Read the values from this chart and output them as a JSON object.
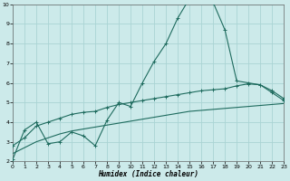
{
  "xlabel": "Humidex (Indice chaleur)",
  "bg_color": "#cceaea",
  "grid_color": "#aad4d4",
  "line_color": "#1e6b5e",
  "x_max": 23,
  "y_min": 2,
  "y_max": 10,
  "line1_x": [
    0,
    1,
    2,
    3,
    4,
    5,
    6,
    7,
    8,
    9,
    10,
    11,
    12,
    13,
    14,
    15,
    16,
    17,
    18,
    19,
    20,
    21,
    22,
    23
  ],
  "line1_y": [
    2.1,
    3.6,
    4.0,
    2.9,
    3.0,
    3.5,
    3.3,
    2.8,
    4.1,
    5.0,
    4.8,
    6.0,
    7.1,
    8.0,
    9.3,
    10.3,
    10.2,
    10.1,
    8.7,
    6.1,
    6.0,
    5.9,
    5.5,
    5.1
  ],
  "line2_x": [
    0,
    1,
    2,
    3,
    4,
    5,
    6,
    7,
    8,
    9,
    10,
    11,
    12,
    13,
    14,
    15,
    16,
    17,
    18,
    19,
    20,
    21,
    22,
    23
  ],
  "line2_y": [
    2.8,
    3.2,
    3.8,
    4.0,
    4.2,
    4.4,
    4.5,
    4.55,
    4.75,
    4.9,
    5.0,
    5.1,
    5.2,
    5.3,
    5.4,
    5.5,
    5.6,
    5.65,
    5.7,
    5.85,
    5.95,
    5.9,
    5.6,
    5.2
  ],
  "line3_x": [
    0,
    1,
    2,
    3,
    4,
    5,
    6,
    7,
    8,
    9,
    10,
    11,
    12,
    13,
    14,
    15,
    16,
    17,
    18,
    19,
    20,
    21,
    22,
    23
  ],
  "line3_y": [
    2.4,
    2.7,
    3.0,
    3.2,
    3.4,
    3.55,
    3.65,
    3.75,
    3.85,
    3.95,
    4.05,
    4.15,
    4.25,
    4.35,
    4.45,
    4.55,
    4.6,
    4.65,
    4.7,
    4.75,
    4.8,
    4.85,
    4.9,
    4.95
  ]
}
